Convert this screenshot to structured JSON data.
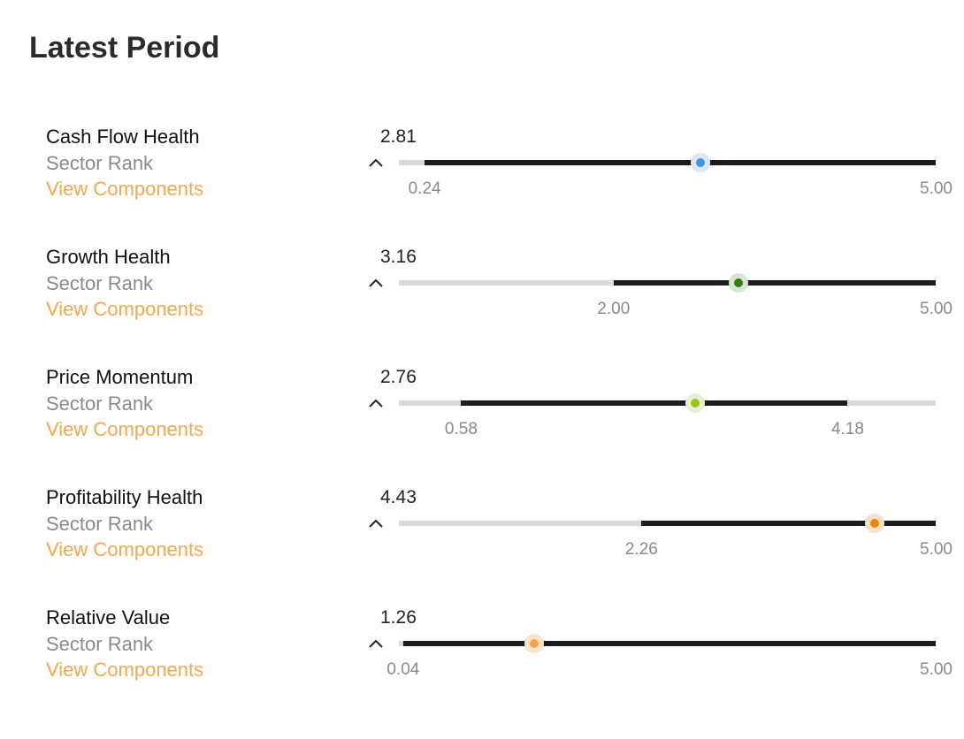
{
  "page_title": "Latest Period",
  "scale": {
    "min": 0,
    "max": 5
  },
  "sector_rank_label": "Sector Rank",
  "view_components_label": "View Components",
  "metrics": [
    {
      "name": "Cash Flow Health",
      "score": "2.81",
      "score_value": 2.81,
      "range_low": "0.24",
      "range_low_value": 0.24,
      "range_high": "5.00",
      "range_high_value": 5.0,
      "marker_color": "#4a90e2",
      "halo_color": "#dde8f6"
    },
    {
      "name": "Growth Health",
      "score": "3.16",
      "score_value": 3.16,
      "range_low": "2.00",
      "range_low_value": 2.0,
      "range_high": "5.00",
      "range_high_value": 5.0,
      "marker_color": "#2f7d1f",
      "halo_color": "#d6e6d2"
    },
    {
      "name": "Price Momentum",
      "score": "2.76",
      "score_value": 2.76,
      "range_low": "0.58",
      "range_low_value": 0.58,
      "range_high": "4.18",
      "range_high_value": 4.18,
      "marker_color": "#9cc21c",
      "halo_color": "#e8f0cf"
    },
    {
      "name": "Profitability Health",
      "score": "4.43",
      "score_value": 4.43,
      "range_low": "2.26",
      "range_low_value": 2.26,
      "range_high": "5.00",
      "range_high_value": 5.0,
      "marker_color": "#e8870e",
      "halo_color": "#f7e1cb"
    },
    {
      "name": "Relative Value",
      "score": "1.26",
      "score_value": 1.26,
      "range_low": "0.04",
      "range_low_value": 0.04,
      "range_high": "5.00",
      "range_high_value": 5.0,
      "marker_color": "#f5a54a",
      "halo_color": "#fbe4cc"
    }
  ]
}
